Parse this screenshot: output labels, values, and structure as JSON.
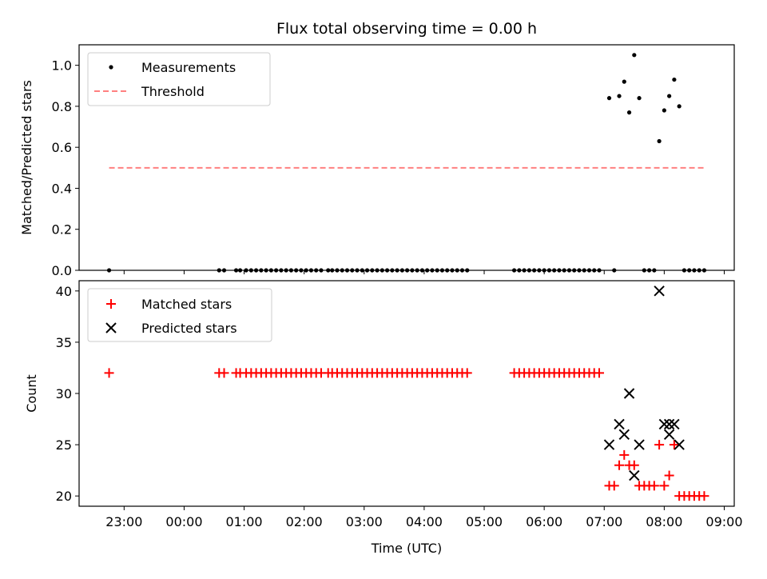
{
  "chart_data": [
    {
      "type": "scatter",
      "title": "Flux total observing time = 0.00 h",
      "xlabel": "",
      "ylabel": "Matched/Predicted stars",
      "ylim": [
        0,
        1.1
      ],
      "xlim": [
        "22:15",
        "09:10"
      ],
      "yticks": [
        "0.0",
        "0.2",
        "0.4",
        "0.6",
        "0.8",
        "1.0"
      ],
      "yticks_values": [
        0,
        0.2,
        0.4,
        0.6,
        0.8,
        1.0
      ],
      "legend": {
        "placement": "upper-left",
        "entries": [
          "Measurements",
          "Threshold"
        ]
      },
      "threshold": {
        "value": 0.5,
        "x_start": "22:45",
        "x_end": "08:40",
        "color": "#ff8080",
        "style": "dashed"
      },
      "series": [
        {
          "name": "Measurements",
          "color": "#000000",
          "marker": "dot",
          "points": [
            {
              "x": "22:45",
              "y": 0.0
            },
            {
              "x": "00:35",
              "y": 0.0
            },
            {
              "x": "00:40",
              "y": 0.0
            },
            {
              "x": "00:52",
              "y": 0.0
            },
            {
              "x": "00:56",
              "y": 0.0
            },
            {
              "x": "01:02",
              "y": 0.0
            },
            {
              "x": "01:07",
              "y": 0.0
            },
            {
              "x": "01:12",
              "y": 0.0
            },
            {
              "x": "01:17",
              "y": 0.0
            },
            {
              "x": "01:22",
              "y": 0.0
            },
            {
              "x": "01:27",
              "y": 0.0
            },
            {
              "x": "01:32",
              "y": 0.0
            },
            {
              "x": "01:37",
              "y": 0.0
            },
            {
              "x": "01:42",
              "y": 0.0
            },
            {
              "x": "01:47",
              "y": 0.0
            },
            {
              "x": "01:52",
              "y": 0.0
            },
            {
              "x": "01:57",
              "y": 0.0
            },
            {
              "x": "02:02",
              "y": 0.0
            },
            {
              "x": "02:07",
              "y": 0.0
            },
            {
              "x": "02:12",
              "y": 0.0
            },
            {
              "x": "02:17",
              "y": 0.0
            },
            {
              "x": "02:24",
              "y": 0.0
            },
            {
              "x": "02:28",
              "y": 0.0
            },
            {
              "x": "02:33",
              "y": 0.0
            },
            {
              "x": "02:38",
              "y": 0.0
            },
            {
              "x": "02:43",
              "y": 0.0
            },
            {
              "x": "02:48",
              "y": 0.0
            },
            {
              "x": "02:53",
              "y": 0.0
            },
            {
              "x": "02:58",
              "y": 0.0
            },
            {
              "x": "03:03",
              "y": 0.0
            },
            {
              "x": "03:08",
              "y": 0.0
            },
            {
              "x": "03:13",
              "y": 0.0
            },
            {
              "x": "03:18",
              "y": 0.0
            },
            {
              "x": "03:23",
              "y": 0.0
            },
            {
              "x": "03:28",
              "y": 0.0
            },
            {
              "x": "03:33",
              "y": 0.0
            },
            {
              "x": "03:38",
              "y": 0.0
            },
            {
              "x": "03:43",
              "y": 0.0
            },
            {
              "x": "03:48",
              "y": 0.0
            },
            {
              "x": "03:53",
              "y": 0.0
            },
            {
              "x": "03:58",
              "y": 0.0
            },
            {
              "x": "04:03",
              "y": 0.0
            },
            {
              "x": "04:08",
              "y": 0.0
            },
            {
              "x": "04:13",
              "y": 0.0
            },
            {
              "x": "04:18",
              "y": 0.0
            },
            {
              "x": "04:23",
              "y": 0.0
            },
            {
              "x": "04:28",
              "y": 0.0
            },
            {
              "x": "04:33",
              "y": 0.0
            },
            {
              "x": "04:38",
              "y": 0.0
            },
            {
              "x": "04:43",
              "y": 0.0
            },
            {
              "x": "05:30",
              "y": 0.0
            },
            {
              "x": "05:35",
              "y": 0.0
            },
            {
              "x": "05:40",
              "y": 0.0
            },
            {
              "x": "05:45",
              "y": 0.0
            },
            {
              "x": "05:50",
              "y": 0.0
            },
            {
              "x": "05:55",
              "y": 0.0
            },
            {
              "x": "06:00",
              "y": 0.0
            },
            {
              "x": "06:05",
              "y": 0.0
            },
            {
              "x": "06:10",
              "y": 0.0
            },
            {
              "x": "06:15",
              "y": 0.0
            },
            {
              "x": "06:20",
              "y": 0.0
            },
            {
              "x": "06:25",
              "y": 0.0
            },
            {
              "x": "06:30",
              "y": 0.0
            },
            {
              "x": "06:35",
              "y": 0.0
            },
            {
              "x": "06:40",
              "y": 0.0
            },
            {
              "x": "06:45",
              "y": 0.0
            },
            {
              "x": "06:50",
              "y": 0.0
            },
            {
              "x": "06:55",
              "y": 0.0
            },
            {
              "x": "07:05",
              "y": 0.84
            },
            {
              "x": "07:10",
              "y": 0.0
            },
            {
              "x": "07:15",
              "y": 0.85
            },
            {
              "x": "07:20",
              "y": 0.92
            },
            {
              "x": "07:25",
              "y": 0.77
            },
            {
              "x": "07:30",
              "y": 1.05
            },
            {
              "x": "07:35",
              "y": 0.84
            },
            {
              "x": "07:40",
              "y": 0.0
            },
            {
              "x": "07:45",
              "y": 0.0
            },
            {
              "x": "07:50",
              "y": 0.0
            },
            {
              "x": "07:55",
              "y": 0.63
            },
            {
              "x": "08:00",
              "y": 0.78
            },
            {
              "x": "08:05",
              "y": 0.85
            },
            {
              "x": "08:10",
              "y": 0.93
            },
            {
              "x": "08:15",
              "y": 0.8
            },
            {
              "x": "08:20",
              "y": 0.0
            },
            {
              "x": "08:25",
              "y": 0.0
            },
            {
              "x": "08:30",
              "y": 0.0
            },
            {
              "x": "08:35",
              "y": 0.0
            },
            {
              "x": "08:40",
              "y": 0.0
            }
          ]
        }
      ]
    },
    {
      "type": "scatter",
      "title": "",
      "xlabel": "Time (UTC)",
      "ylabel": "Count",
      "ylim": [
        19,
        41
      ],
      "xlim": [
        "22:15",
        "09:10"
      ],
      "yticks": [
        "20",
        "25",
        "30",
        "35",
        "40"
      ],
      "yticks_values": [
        20,
        25,
        30,
        35,
        40
      ],
      "xticks": [
        "23:00",
        "00:00",
        "01:00",
        "02:00",
        "03:00",
        "04:00",
        "05:00",
        "06:00",
        "07:00",
        "08:00",
        "09:00"
      ],
      "legend": {
        "placement": "upper-left",
        "entries": [
          "Matched stars",
          "Predicted stars"
        ]
      },
      "series": [
        {
          "name": "Matched stars",
          "color": "#ff0000",
          "marker": "plus",
          "points": [
            {
              "x": "22:45",
              "y": 32
            },
            {
              "x": "00:35",
              "y": 32
            },
            {
              "x": "00:40",
              "y": 32
            },
            {
              "x": "00:52",
              "y": 32
            },
            {
              "x": "00:56",
              "y": 32
            },
            {
              "x": "01:02",
              "y": 32
            },
            {
              "x": "01:07",
              "y": 32
            },
            {
              "x": "01:12",
              "y": 32
            },
            {
              "x": "01:17",
              "y": 32
            },
            {
              "x": "01:22",
              "y": 32
            },
            {
              "x": "01:27",
              "y": 32
            },
            {
              "x": "01:32",
              "y": 32
            },
            {
              "x": "01:37",
              "y": 32
            },
            {
              "x": "01:42",
              "y": 32
            },
            {
              "x": "01:47",
              "y": 32
            },
            {
              "x": "01:52",
              "y": 32
            },
            {
              "x": "01:57",
              "y": 32
            },
            {
              "x": "02:02",
              "y": 32
            },
            {
              "x": "02:07",
              "y": 32
            },
            {
              "x": "02:12",
              "y": 32
            },
            {
              "x": "02:17",
              "y": 32
            },
            {
              "x": "02:24",
              "y": 32
            },
            {
              "x": "02:28",
              "y": 32
            },
            {
              "x": "02:33",
              "y": 32
            },
            {
              "x": "02:38",
              "y": 32
            },
            {
              "x": "02:43",
              "y": 32
            },
            {
              "x": "02:48",
              "y": 32
            },
            {
              "x": "02:53",
              "y": 32
            },
            {
              "x": "02:58",
              "y": 32
            },
            {
              "x": "03:03",
              "y": 32
            },
            {
              "x": "03:08",
              "y": 32
            },
            {
              "x": "03:13",
              "y": 32
            },
            {
              "x": "03:18",
              "y": 32
            },
            {
              "x": "03:23",
              "y": 32
            },
            {
              "x": "03:28",
              "y": 32
            },
            {
              "x": "03:33",
              "y": 32
            },
            {
              "x": "03:38",
              "y": 32
            },
            {
              "x": "03:43",
              "y": 32
            },
            {
              "x": "03:48",
              "y": 32
            },
            {
              "x": "03:53",
              "y": 32
            },
            {
              "x": "03:58",
              "y": 32
            },
            {
              "x": "04:03",
              "y": 32
            },
            {
              "x": "04:08",
              "y": 32
            },
            {
              "x": "04:13",
              "y": 32
            },
            {
              "x": "04:18",
              "y": 32
            },
            {
              "x": "04:23",
              "y": 32
            },
            {
              "x": "04:28",
              "y": 32
            },
            {
              "x": "04:33",
              "y": 32
            },
            {
              "x": "04:38",
              "y": 32
            },
            {
              "x": "04:43",
              "y": 32
            },
            {
              "x": "05:30",
              "y": 32
            },
            {
              "x": "05:35",
              "y": 32
            },
            {
              "x": "05:40",
              "y": 32
            },
            {
              "x": "05:45",
              "y": 32
            },
            {
              "x": "05:50",
              "y": 32
            },
            {
              "x": "05:55",
              "y": 32
            },
            {
              "x": "06:00",
              "y": 32
            },
            {
              "x": "06:05",
              "y": 32
            },
            {
              "x": "06:10",
              "y": 32
            },
            {
              "x": "06:15",
              "y": 32
            },
            {
              "x": "06:20",
              "y": 32
            },
            {
              "x": "06:25",
              "y": 32
            },
            {
              "x": "06:30",
              "y": 32
            },
            {
              "x": "06:35",
              "y": 32
            },
            {
              "x": "06:40",
              "y": 32
            },
            {
              "x": "06:45",
              "y": 32
            },
            {
              "x": "06:50",
              "y": 32
            },
            {
              "x": "06:55",
              "y": 32
            },
            {
              "x": "07:05",
              "y": 21
            },
            {
              "x": "07:10",
              "y": 21
            },
            {
              "x": "07:15",
              "y": 23
            },
            {
              "x": "07:20",
              "y": 24
            },
            {
              "x": "07:25",
              "y": 23
            },
            {
              "x": "07:30",
              "y": 23
            },
            {
              "x": "07:35",
              "y": 21
            },
            {
              "x": "07:40",
              "y": 21
            },
            {
              "x": "07:45",
              "y": 21
            },
            {
              "x": "07:50",
              "y": 21
            },
            {
              "x": "07:55",
              "y": 25
            },
            {
              "x": "08:00",
              "y": 21
            },
            {
              "x": "08:05",
              "y": 22
            },
            {
              "x": "08:10",
              "y": 25
            },
            {
              "x": "08:15",
              "y": 20
            },
            {
              "x": "08:20",
              "y": 20
            },
            {
              "x": "08:25",
              "y": 20
            },
            {
              "x": "08:30",
              "y": 20
            },
            {
              "x": "08:35",
              "y": 20
            },
            {
              "x": "08:40",
              "y": 20
            }
          ]
        },
        {
          "name": "Predicted stars",
          "color": "#000000",
          "marker": "x",
          "points": [
            {
              "x": "07:05",
              "y": 25
            },
            {
              "x": "07:15",
              "y": 27
            },
            {
              "x": "07:20",
              "y": 26
            },
            {
              "x": "07:25",
              "y": 30
            },
            {
              "x": "07:30",
              "y": 22
            },
            {
              "x": "07:35",
              "y": 25
            },
            {
              "x": "07:55",
              "y": 40
            },
            {
              "x": "08:00",
              "y": 27
            },
            {
              "x": "08:05",
              "y": 26
            },
            {
              "x": "08:10",
              "y": 27
            },
            {
              "x": "08:15",
              "y": 25
            },
            {
              "x": "08:05",
              "y": 27
            }
          ]
        }
      ]
    }
  ]
}
